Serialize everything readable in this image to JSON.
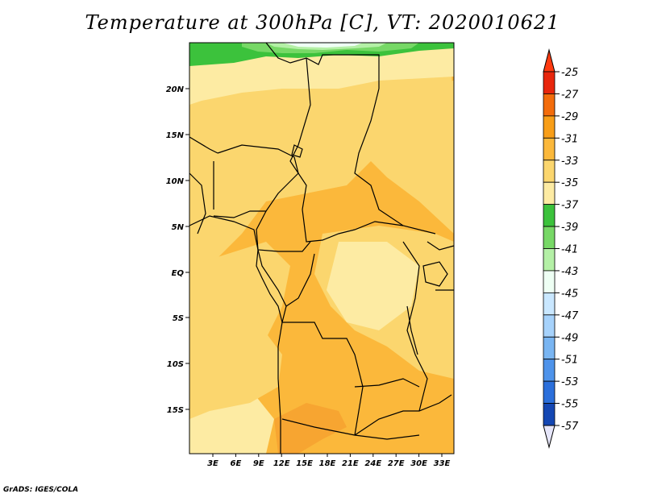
{
  "title": "Temperature at 300hPa [C], VT: 2020010621",
  "credit": "GrADS: IGES/COLA",
  "map": {
    "lat_ticks": [
      "20N",
      "15N",
      "10N",
      "5N",
      "EQ",
      "5S",
      "10S",
      "15S"
    ],
    "lon_ticks": [
      "3E",
      "6E",
      "9E",
      "12E",
      "15E",
      "18E",
      "21E",
      "24E",
      "27E",
      "30E",
      "33E"
    ],
    "colors": {
      "c29_31": "#fbb83b",
      "c31_33": "#fbd66e",
      "c33_35": "#fdeba3",
      "c35_37": "#3cc23c",
      "c37_39": "#77d866",
      "c39_41": "#b4f0a6",
      "c41_43": "#eefff4"
    }
  },
  "colorbar": {
    "labels": [
      "-25",
      "-27",
      "-29",
      "-31",
      "-33",
      "-35",
      "-37",
      "-39",
      "-41",
      "-43",
      "-45",
      "-47",
      "-49",
      "-51",
      "-53",
      "-55",
      "-57"
    ],
    "colors": [
      "#e8260c",
      "#f36c0b",
      "#f89e18",
      "#fbb83b",
      "#fbd66e",
      "#fdeba3",
      "#3cc23c",
      "#77d866",
      "#b4f0a6",
      "#eefff4",
      "#c9e7ff",
      "#a6d2fb",
      "#79b5f2",
      "#4e93ea",
      "#2b6fdb",
      "#1447b3",
      "#0a1b6f"
    ],
    "top_triangle": "#ff3a10",
    "bottom_triangle": "#e6e6fa"
  }
}
